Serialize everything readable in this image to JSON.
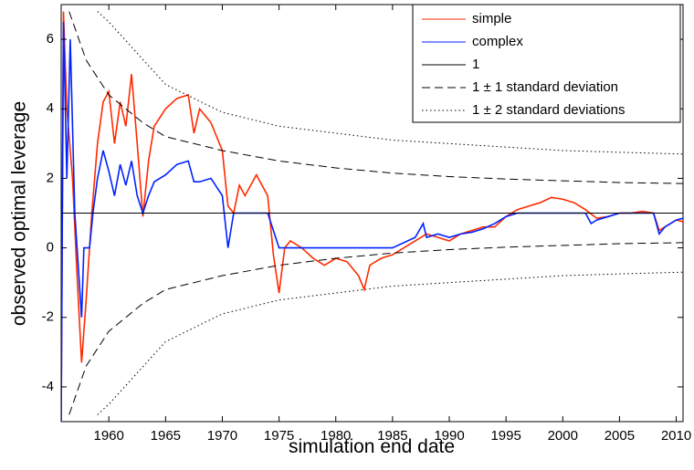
{
  "chart_data": {
    "type": "line",
    "xlabel": "simulation end date",
    "ylabel": "observed optimal leverage",
    "xlim": [
      1955.8,
      2010.6
    ],
    "ylim": [
      -5,
      7
    ],
    "xticks": [
      1960,
      1965,
      1970,
      1975,
      1980,
      1985,
      1990,
      1995,
      2000,
      2005,
      2010
    ],
    "yticks": [
      -4,
      -2,
      0,
      2,
      4,
      6
    ],
    "legend": "upper right",
    "series": [
      {
        "name": "simple",
        "color": "#ff2a00",
        "style": "solid",
        "x": [
          1955.8,
          1956.0,
          1956.3,
          1956.8,
          1957.2,
          1957.6,
          1958.0,
          1958.5,
          1959,
          1959.5,
          1960,
          1960.5,
          1961,
          1961.5,
          1962,
          1962.5,
          1963,
          1963.5,
          1964,
          1965,
          1966,
          1967,
          1967.5,
          1968,
          1969,
          1970,
          1970.5,
          1971,
          1971.5,
          1972,
          1973,
          1974,
          1974.5,
          1975,
          1975.5,
          1976,
          1977,
          1978,
          1979,
          1980,
          1981,
          1982,
          1982.5,
          1983,
          1984,
          1985,
          1986,
          1987,
          1988,
          1989,
          1990,
          1991,
          1992,
          1993,
          1994,
          1995,
          1996,
          1997,
          1998,
          1999,
          2000,
          2001,
          2002,
          2003,
          2004,
          2005,
          2006,
          2007,
          2008,
          2008.5,
          2009,
          2010,
          2010.6
        ],
        "values": [
          -5,
          6.8,
          4,
          2,
          -0.8,
          -3.3,
          -1.5,
          1,
          3,
          4.2,
          4.5,
          3,
          4.2,
          3.5,
          5,
          3,
          0.9,
          2.5,
          3.5,
          4,
          4.3,
          4.4,
          3.3,
          4,
          3.6,
          2.8,
          1.2,
          1,
          1.8,
          1.5,
          2.1,
          1.5,
          -0.2,
          -1.3,
          0,
          0.2,
          0,
          -0.3,
          -0.5,
          -0.3,
          -0.4,
          -0.8,
          -1.2,
          -0.5,
          -0.3,
          -0.2,
          0,
          0.2,
          0.4,
          0.3,
          0.2,
          0.4,
          0.5,
          0.6,
          0.6,
          0.9,
          1.1,
          1.2,
          1.3,
          1.45,
          1.4,
          1.3,
          1.1,
          0.85,
          0.9,
          1.0,
          1.0,
          1.05,
          1.0,
          0.5,
          0.6,
          0.8,
          0.75
        ]
      },
      {
        "name": "complex",
        "color": "#0022ff",
        "style": "solid",
        "x": [
          1955.8,
          1956.0,
          1956.3,
          1956.6,
          1957,
          1957.3,
          1957.6,
          1957.8,
          1958.3,
          1958.6,
          1959,
          1959.5,
          1960,
          1960.5,
          1961,
          1961.5,
          1962,
          1962.5,
          1963,
          1963.5,
          1964,
          1965,
          1966,
          1967,
          1967.5,
          1968,
          1969,
          1970,
          1970.5,
          1971,
          1972,
          1973,
          1974,
          1974.5,
          1975,
          1980,
          1985,
          1987,
          1987.7,
          1988,
          1989,
          1990,
          1991,
          1992,
          1993,
          1994,
          1995,
          1996,
          2000,
          2002,
          2002.5,
          2003,
          2004,
          2005,
          2007,
          2008,
          2008.5,
          2009,
          2010,
          2010.6
        ],
        "values": [
          -5,
          6.5,
          2,
          6,
          1,
          -0.5,
          -2,
          0,
          0,
          1,
          2,
          2.8,
          2.2,
          1.5,
          2.4,
          1.8,
          2.5,
          1.5,
          1,
          1.5,
          1.9,
          2.1,
          2.4,
          2.5,
          1.9,
          1.9,
          2,
          1.5,
          0,
          1,
          1,
          1,
          1,
          0.5,
          0,
          0,
          0,
          0.3,
          0.7,
          0.3,
          0.4,
          0.3,
          0.4,
          0.45,
          0.55,
          0.7,
          0.9,
          1,
          1,
          1,
          0.7,
          0.8,
          0.9,
          1,
          1,
          1,
          0.4,
          0.6,
          0.8,
          0.85
        ]
      },
      {
        "name": "1",
        "color": "#000000",
        "style": "solid",
        "x": [
          1955.8,
          2010.6
        ],
        "values": [
          1,
          1
        ]
      },
      {
        "name": "1 ± 1 standard deviation",
        "color": "#000000",
        "style": "dashed",
        "x": [
          1956.5,
          1958,
          1960,
          1963,
          1965,
          1970,
          1975,
          1980,
          1985,
          1990,
          1995,
          2000,
          2005,
          2010.6
        ],
        "values": [
          6.8,
          5.4,
          4.4,
          3.6,
          3.2,
          2.8,
          2.5,
          2.3,
          2.15,
          2.05,
          1.98,
          1.93,
          1.88,
          1.85
        ],
        "lower": [
          -4.8,
          -3.4,
          -2.4,
          -1.6,
          -1.2,
          -0.8,
          -0.5,
          -0.3,
          -0.15,
          -0.05,
          0.02,
          0.07,
          0.12,
          0.15
        ]
      },
      {
        "name": "1 ± 2 standard deviations",
        "color": "#000000",
        "style": "dotted",
        "x": [
          1959,
          1960,
          1965,
          1970,
          1975,
          1980,
          1985,
          1990,
          1995,
          2000,
          2005,
          2010.6
        ],
        "values": [
          6.8,
          6.5,
          4.7,
          3.9,
          3.5,
          3.3,
          3.1,
          3.0,
          2.9,
          2.8,
          2.75,
          2.7
        ],
        "lower": [
          -4.8,
          -4.5,
          -2.7,
          -1.9,
          -1.5,
          -1.3,
          -1.1,
          -1.0,
          -0.9,
          -0.8,
          -0.75,
          -0.7
        ]
      }
    ]
  }
}
